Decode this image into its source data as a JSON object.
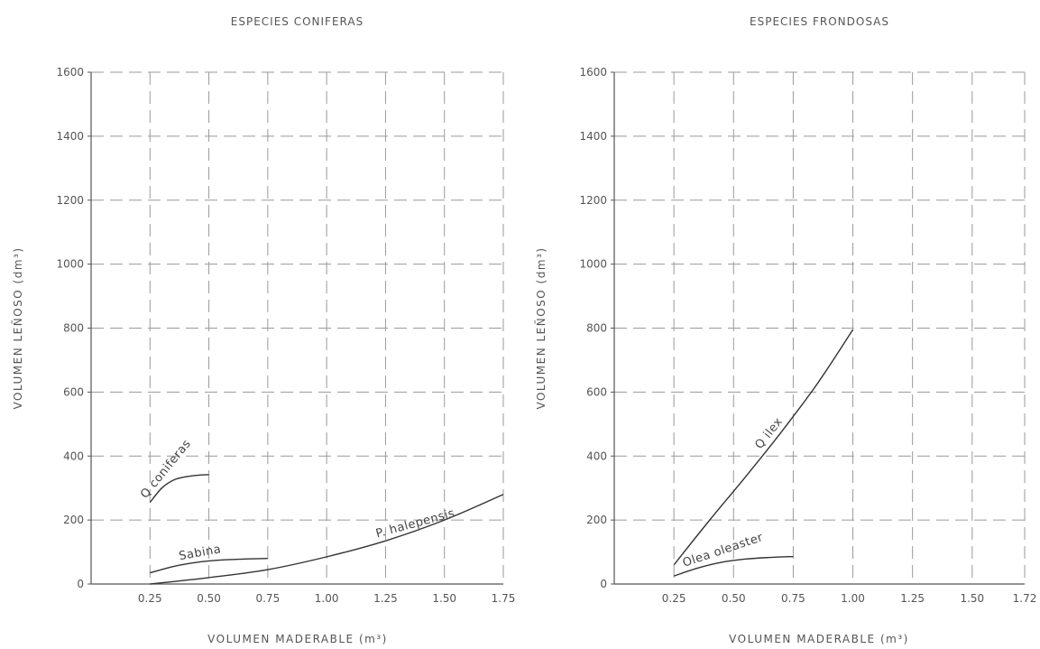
{
  "chart_data": [
    {
      "type": "line",
      "title": "ESPECIES CONIFERAS",
      "xlabel": "VOLUMEN MADERABLE (m³)",
      "ylabel": "VOLUMEN LEÑOSO (dm³)",
      "xlim": [
        0,
        1.75
      ],
      "ylim": [
        0,
        1600
      ],
      "x_ticks": [
        "0.25",
        "0.50",
        "0.75",
        "1.00",
        "1.25",
        "1.50",
        "1.75"
      ],
      "y_ticks": [
        "0",
        "200",
        "400",
        "600",
        "800",
        "1000",
        "1200",
        "1400",
        "1600"
      ],
      "grid": true,
      "series": [
        {
          "name": "Q coniferas",
          "x": [
            0.25,
            0.3,
            0.35,
            0.4,
            0.45,
            0.5
          ],
          "y": [
            255,
            300,
            325,
            335,
            340,
            342
          ],
          "label_at": 0.25
        },
        {
          "name": "Sabina",
          "x": [
            0.25,
            0.35,
            0.45,
            0.55,
            0.65,
            0.75
          ],
          "y": [
            35,
            55,
            68,
            75,
            78,
            80
          ],
          "label_at": 0.38
        },
        {
          "name": "P. halepensis",
          "x": [
            0.25,
            0.5,
            0.75,
            1.0,
            1.25,
            1.5,
            1.75
          ],
          "y": [
            0,
            20,
            45,
            85,
            135,
            200,
            280
          ],
          "label_at": 1.22
        }
      ]
    },
    {
      "type": "line",
      "title": "ESPECIES FRONDOSAS",
      "xlabel": "VOLUMEN MADERABLE (m³)",
      "ylabel": "VOLUMEN LEÑOSO (dm³)",
      "xlim": [
        0,
        1.72
      ],
      "ylim": [
        0,
        1600
      ],
      "x_ticks": [
        "0.25",
        "0.50",
        "0.75",
        "1.00",
        "1.25",
        "1.50",
        "1.72"
      ],
      "y_ticks": [
        "0",
        "200",
        "400",
        "600",
        "800",
        "1000",
        "1200",
        "1400",
        "1600"
      ],
      "grid": true,
      "series": [
        {
          "name": "Q ilex",
          "x": [
            0.25,
            0.4,
            0.55,
            0.7,
            0.85,
            1.0
          ],
          "y": [
            60,
            200,
            335,
            475,
            625,
            795
          ],
          "label_at": 0.63
        },
        {
          "name": "Olea oleaster",
          "x": [
            0.25,
            0.35,
            0.45,
            0.55,
            0.65,
            0.75
          ],
          "y": [
            25,
            50,
            68,
            78,
            83,
            86
          ],
          "label_at": 0.3
        }
      ]
    }
  ]
}
